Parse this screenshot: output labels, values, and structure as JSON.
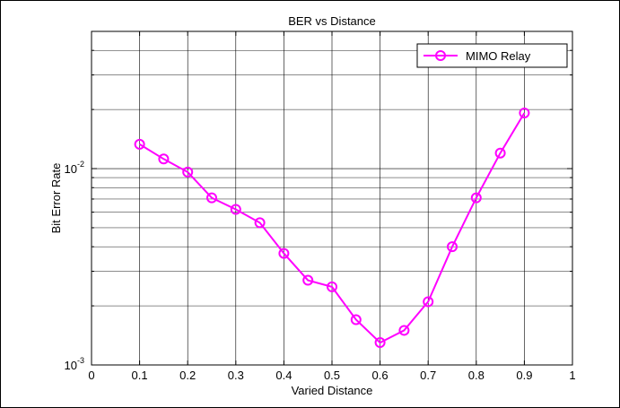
{
  "chart_data": {
    "type": "line",
    "title": "BER vs Distance",
    "xlabel": "Varied Distance",
    "ylabel": "Bit Error Rate",
    "xlim": [
      0,
      1
    ],
    "ylim": [
      0.001,
      0.05
    ],
    "yscale": "log",
    "grid": true,
    "legend_position": "top-right",
    "x_ticks": [
      "0",
      "0.1",
      "0.2",
      "0.3",
      "0.4",
      "0.5",
      "0.6",
      "0.7",
      "0.8",
      "0.9",
      "1"
    ],
    "y_ticks": [
      {
        "base": "10",
        "exp": "-3",
        "value": 0.001
      },
      {
        "base": "10",
        "exp": "-2",
        "value": 0.01
      }
    ],
    "series": [
      {
        "name": "MIMO Relay",
        "color": "#ff00ff",
        "marker": "circle",
        "x": [
          0.1,
          0.15,
          0.2,
          0.25,
          0.3,
          0.35,
          0.4,
          0.45,
          0.5,
          0.55,
          0.6,
          0.65,
          0.7,
          0.75,
          0.8,
          0.85,
          0.9
        ],
        "y": [
          0.0133,
          0.0112,
          0.0096,
          0.0071,
          0.0062,
          0.0053,
          0.0037,
          0.0027,
          0.0025,
          0.0017,
          0.0013,
          0.0015,
          0.0021,
          0.004,
          0.0071,
          0.012,
          0.0192
        ]
      }
    ]
  }
}
